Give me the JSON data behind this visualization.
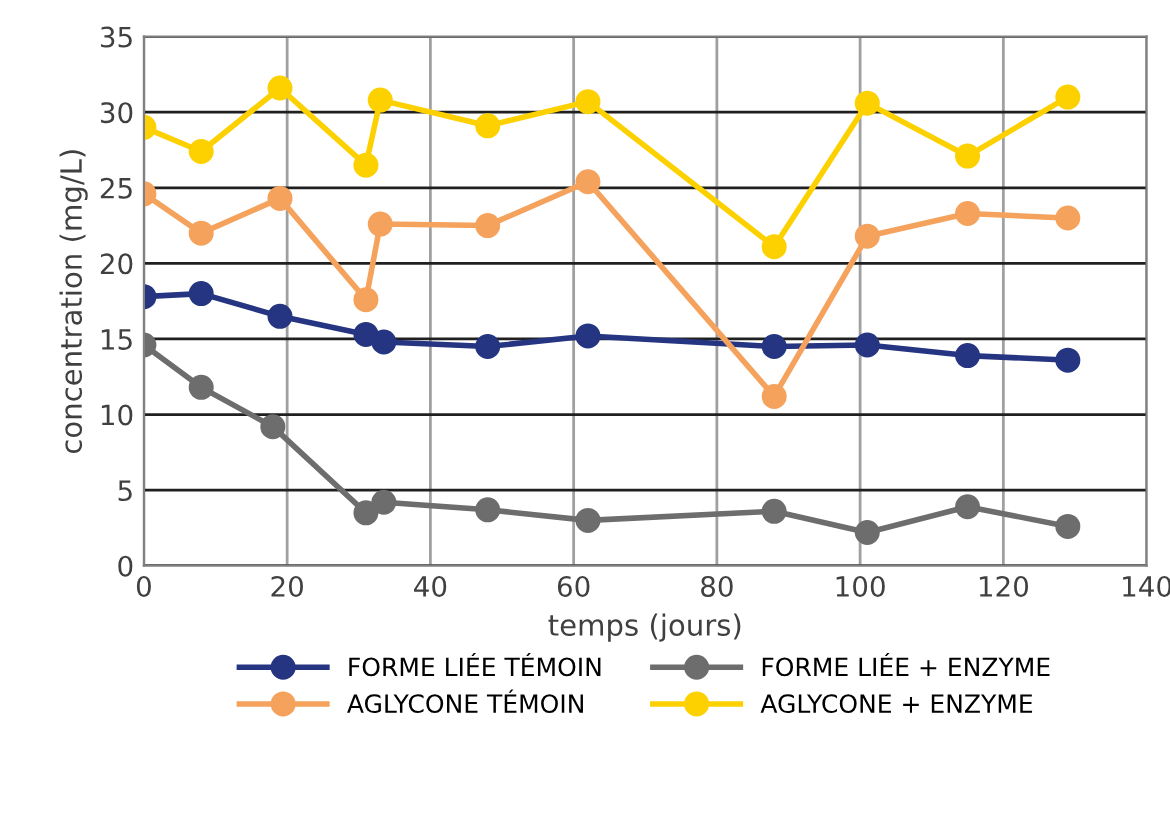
{
  "chart_data": {
    "type": "line",
    "xlabel": "temps (jours)",
    "ylabel": "concentration (mg/L)",
    "xlim": [
      0,
      140
    ],
    "xticks": [
      0,
      20,
      40,
      60,
      80,
      100,
      120,
      140
    ],
    "ylim": [
      0,
      35
    ],
    "yticks": [
      0,
      5,
      10,
      15,
      20,
      25,
      30,
      35
    ],
    "grid": true,
    "legend": "bottom",
    "marker": "circle",
    "line_style": "solid",
    "series": [
      {
        "name": "FORME LIÉE TÉMOIN",
        "color": "#253581",
        "x": [
          0,
          8,
          19,
          31,
          33.5,
          48,
          62,
          88,
          101,
          115,
          129
        ],
        "values": [
          17.8,
          18,
          16.5,
          15.3,
          14.8,
          14.5,
          15.2,
          14.5,
          14.6,
          13.9,
          13.6
        ]
      },
      {
        "name": "FORME LIÉE + ENZYME",
        "color": "#6d6d6d",
        "x": [
          0,
          8,
          18,
          31,
          33.5,
          48,
          62,
          88,
          101,
          115,
          129
        ],
        "values": [
          14.6,
          11.8,
          9.2,
          3.5,
          4.2,
          3.7,
          3.0,
          3.6,
          2.2,
          3.9,
          2.6
        ]
      },
      {
        "name": "AGLYCONE TÉMOIN",
        "color": "#f5a25d",
        "x": [
          0,
          8,
          19,
          31,
          33,
          48,
          62,
          88,
          101,
          115,
          129
        ],
        "values": [
          24.6,
          22,
          24.3,
          17.6,
          22.6,
          22.5,
          25.4,
          11.2,
          21.8,
          23.3,
          23.0
        ]
      },
      {
        "name": "AGLYCONE + ENZYME",
        "color": "#fdd000",
        "x": [
          0,
          8,
          19,
          31,
          33,
          48,
          62,
          88,
          101,
          115,
          129
        ],
        "values": [
          29,
          27.4,
          31.6,
          26.5,
          30.8,
          29.1,
          30.7,
          21.1,
          30.6,
          27.1,
          31
        ]
      }
    ]
  }
}
